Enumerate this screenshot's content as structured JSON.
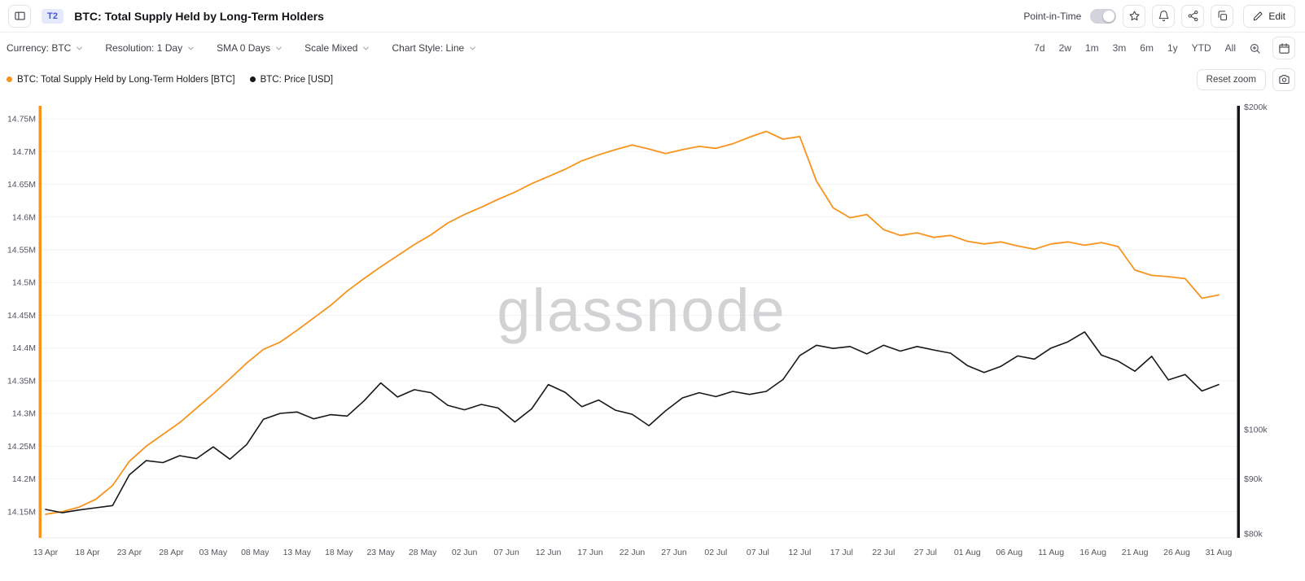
{
  "header": {
    "badge": "T2",
    "title": "BTC: Total Supply Held by Long-Term Holders",
    "point_in_time_label": "Point-in-Time",
    "edit_label": "Edit"
  },
  "toolbar": {
    "currency_label": "Currency: BTC",
    "resolution_label": "Resolution: 1 Day",
    "sma_label": "SMA 0 Days",
    "scale_label": "Scale Mixed",
    "chart_style_label": "Chart Style: Line",
    "ranges": [
      "7d",
      "2w",
      "1m",
      "3m",
      "6m",
      "1y",
      "YTD",
      "All"
    ]
  },
  "legend": {
    "items": [
      {
        "label": "BTC: Total Supply Held by Long-Term Holders [BTC]",
        "color": "#f7941d"
      },
      {
        "label": "BTC: Price [USD]",
        "color": "#17181c"
      }
    ],
    "reset_zoom_label": "Reset zoom"
  },
  "chart_data": {
    "type": "line",
    "watermark": "glassnode",
    "grid": "horizontal",
    "x_axis": {
      "tick_labels": [
        "13 Apr",
        "18 Apr",
        "23 Apr",
        "28 Apr",
        "03 May",
        "08 May",
        "13 May",
        "18 May",
        "23 May",
        "28 May",
        "02 Jun",
        "07 Jun",
        "12 Jun",
        "17 Jun",
        "22 Jun",
        "27 Jun",
        "02 Jul",
        "07 Jul",
        "12 Jul",
        "17 Jul",
        "22 Jul",
        "27 Jul",
        "01 Aug",
        "06 Aug",
        "11 Aug",
        "16 Aug",
        "21 Aug",
        "26 Aug",
        "31 Aug"
      ],
      "tick_interval_days": 5,
      "range_days": 140
    },
    "left_axis": {
      "scale": "linear",
      "title": "BTC: Total Supply Held by Long-Term Holders [BTC]",
      "min": 14.11,
      "max": 14.77,
      "unit": "M BTC",
      "tick_values": [
        14.75,
        14.7,
        14.65,
        14.6,
        14.55,
        14.5,
        14.45,
        14.4,
        14.35,
        14.3,
        14.25,
        14.2,
        14.15
      ],
      "tick_labels": [
        "14.75M",
        "14.7M",
        "14.65M",
        "14.6M",
        "14.55M",
        "14.5M",
        "14.45M",
        "14.4M",
        "14.35M",
        "14.3M",
        "14.25M",
        "14.2M",
        "14.15M"
      ]
    },
    "right_axis": {
      "scale": "log",
      "title": "BTC: Price [USD]",
      "min": 79.3,
      "max": 200.5,
      "unit": "k USD",
      "tick_values": [
        200,
        100,
        90,
        80
      ],
      "tick_labels": [
        "$200k",
        "$100k",
        "$90k",
        "$80k"
      ]
    },
    "days": [
      0,
      2,
      4,
      6,
      8,
      10,
      12,
      14,
      16,
      18,
      20,
      22,
      24,
      26,
      28,
      30,
      32,
      34,
      36,
      38,
      40,
      42,
      44,
      46,
      48,
      50,
      52,
      54,
      56,
      58,
      60,
      62,
      64,
      66,
      68,
      70,
      72,
      74,
      76,
      78,
      80,
      82,
      84,
      86,
      88,
      90,
      92,
      94,
      96,
      98,
      100,
      102,
      104,
      106,
      108,
      110,
      112,
      114,
      116,
      118,
      120,
      122,
      124,
      126,
      128,
      130,
      132,
      134,
      136,
      138,
      140
    ],
    "series": [
      {
        "name": "BTC: Total Supply Held by Long-Term Holders [BTC]",
        "axis": "left",
        "color": "#f7941d",
        "values": [
          14.146,
          14.15,
          14.157,
          14.169,
          14.19,
          14.227,
          14.25,
          14.268,
          14.286,
          14.308,
          14.33,
          14.353,
          14.377,
          14.398,
          14.409,
          14.427,
          14.446,
          14.465,
          14.487,
          14.506,
          14.524,
          14.541,
          14.558,
          14.573,
          14.591,
          14.604,
          14.615,
          14.627,
          14.638,
          14.651,
          14.662,
          14.673,
          14.686,
          14.695,
          14.703,
          14.71,
          14.704,
          14.697,
          14.703,
          14.708,
          14.705,
          14.712,
          14.722,
          14.731,
          14.719,
          14.723,
          14.655,
          14.614,
          14.599,
          14.604,
          14.581,
          14.572,
          14.576,
          14.569,
          14.572,
          14.563,
          14.559,
          14.562,
          14.556,
          14.551,
          14.559,
          14.562,
          14.557,
          14.561,
          14.555,
          14.519,
          14.511,
          14.509,
          14.506,
          14.476,
          14.481
        ]
      },
      {
        "name": "BTC: Price [USD]",
        "axis": "right",
        "color": "#17181c",
        "values": [
          84.3,
          83.7,
          84.2,
          84.6,
          85.0,
          90.8,
          93.6,
          93.2,
          94.6,
          94.0,
          96.4,
          93.9,
          96.9,
          102.3,
          103.6,
          103.9,
          102.4,
          103.3,
          103.0,
          106.4,
          110.6,
          107.3,
          109.0,
          108.3,
          105.4,
          104.4,
          105.6,
          104.8,
          101.7,
          104.6,
          110.2,
          108.4,
          105.1,
          106.6,
          104.3,
          103.4,
          100.9,
          104.2,
          107.1,
          108.3,
          107.4,
          108.6,
          107.9,
          108.6,
          111.4,
          117.3,
          119.9,
          119.1,
          119.6,
          117.7,
          119.9,
          118.4,
          119.6,
          118.7,
          117.9,
          114.8,
          113.1,
          114.6,
          117.2,
          116.4,
          119.2,
          120.8,
          123.4,
          117.4,
          115.9,
          113.4,
          117.1,
          111.3,
          112.6,
          108.7,
          110.2
        ]
      }
    ]
  }
}
